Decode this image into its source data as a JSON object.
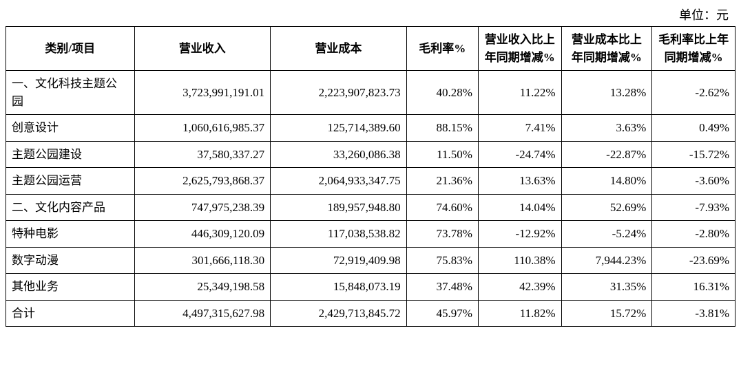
{
  "unit_label": "单位：元",
  "table": {
    "columns": [
      "类别/项目",
      "营业收入",
      "营业成本",
      "毛利率%",
      "营业收入比上年同期增减%",
      "营业成本比上年同期增减%",
      "毛利率比上年同期增减%"
    ],
    "rows": [
      {
        "label": "一、文化科技主题公园",
        "values": [
          "3,723,991,191.01",
          "2,223,907,823.73",
          "40.28%",
          "11.22%",
          "13.28%",
          "-2.62%"
        ]
      },
      {
        "label": "创意设计",
        "values": [
          "1,060,616,985.37",
          "125,714,389.60",
          "88.15%",
          "7.41%",
          "3.63%",
          "0.49%"
        ]
      },
      {
        "label": "主题公园建设",
        "values": [
          "37,580,337.27",
          "33,260,086.38",
          "11.50%",
          "-24.74%",
          "-22.87%",
          "-15.72%"
        ]
      },
      {
        "label": "主题公园运营",
        "values": [
          "2,625,793,868.37",
          "2,064,933,347.75",
          "21.36%",
          "13.63%",
          "14.80%",
          "-3.60%"
        ]
      },
      {
        "label": "二、文化内容产品",
        "values": [
          "747,975,238.39",
          "189,957,948.80",
          "74.60%",
          "14.04%",
          "52.69%",
          "-7.93%"
        ]
      },
      {
        "label": "特种电影",
        "values": [
          "446,309,120.09",
          "117,038,538.82",
          "73.78%",
          "-12.92%",
          "-5.24%",
          "-2.80%"
        ]
      },
      {
        "label": "数字动漫",
        "values": [
          "301,666,118.30",
          "72,919,409.98",
          "75.83%",
          "110.38%",
          "7,944.23%",
          "-23.69%"
        ]
      },
      {
        "label": "其他业务",
        "values": [
          "25,349,198.58",
          "15,848,073.19",
          "37.48%",
          "42.39%",
          "31.35%",
          "16.31%"
        ]
      },
      {
        "label": "合计",
        "values": [
          "4,497,315,627.98",
          "2,429,713,845.72",
          "45.97%",
          "11.82%",
          "15.72%",
          "-3.81%"
        ]
      }
    ]
  }
}
